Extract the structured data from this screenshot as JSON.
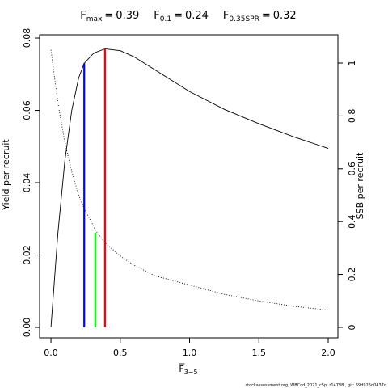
{
  "chart_data": {
    "type": "line",
    "title_parts": [
      {
        "symbol": "F",
        "subscript": "max",
        "equals": "=",
        "value": 0.39
      },
      {
        "symbol": "F",
        "subscript": "0.1",
        "equals": "=",
        "value": 0.24
      },
      {
        "symbol": "F",
        "subscript": "0.35SPR",
        "equals": "=",
        "value": 0.32
      }
    ],
    "x_label": {
      "symbol": "F",
      "subscript": "3−5"
    },
    "y_label": "Yield per recruit",
    "y2_label": "SSB per recruit",
    "footer": "stockassessment.org, WBCod_2021_c5p, r14788 , git: 69d926d0437d",
    "x": [
      0,
      0.05,
      0.1,
      0.15,
      0.2,
      0.24,
      0.3,
      0.32,
      0.39,
      0.5,
      0.6,
      0.75,
      1.0,
      1.25,
      1.5,
      1.75,
      2.0
    ],
    "series": [
      {
        "name": "Yield per recruit",
        "color": "#000000",
        "dash": "solid",
        "values": [
          0,
          0.026,
          0.046,
          0.06,
          0.069,
          0.073,
          0.0755,
          0.076,
          0.077,
          0.0765,
          0.0748,
          0.0712,
          0.0652,
          0.0603,
          0.0563,
          0.0527,
          0.0495
        ]
      },
      {
        "name": "SSB per recruit",
        "color": "#000000",
        "dash": "dotted",
        "axis": "y2",
        "values": [
          1.05,
          0.85,
          0.7,
          0.59,
          0.5,
          0.45,
          0.39,
          0.368,
          0.32,
          0.27,
          0.235,
          0.195,
          0.16,
          0.125,
          0.1,
          0.08,
          0.065
        ]
      }
    ],
    "reference_tops": [
      {
        "value": 0.077,
        "axis": "y",
        "color": "#ff0000"
      },
      {
        "value": 0.073,
        "axis": "y",
        "color": "#0000ff"
      },
      {
        "value": 0.358,
        "axis": "y2",
        "color": "#00ff00"
      }
    ],
    "xlim": [
      -0.082,
      2.07
    ],
    "xticks": [
      {
        "value": 0,
        "label": "0.0"
      },
      0.5,
      {
        "value": 1,
        "label": "1.0"
      },
      1.5,
      {
        "value": 2,
        "label": "2.0"
      }
    ],
    "ylim": [
      -0.0029,
      0.0809
    ],
    "yticks": [
      {
        "value": 0,
        "label": "0.00"
      },
      0.02,
      0.04,
      0.06,
      0.08
    ],
    "y2lim": [
      -0.0398,
      1.107
    ],
    "y2ticks": [
      0,
      0.2,
      0.4,
      0.6,
      0.8,
      1
    ]
  }
}
